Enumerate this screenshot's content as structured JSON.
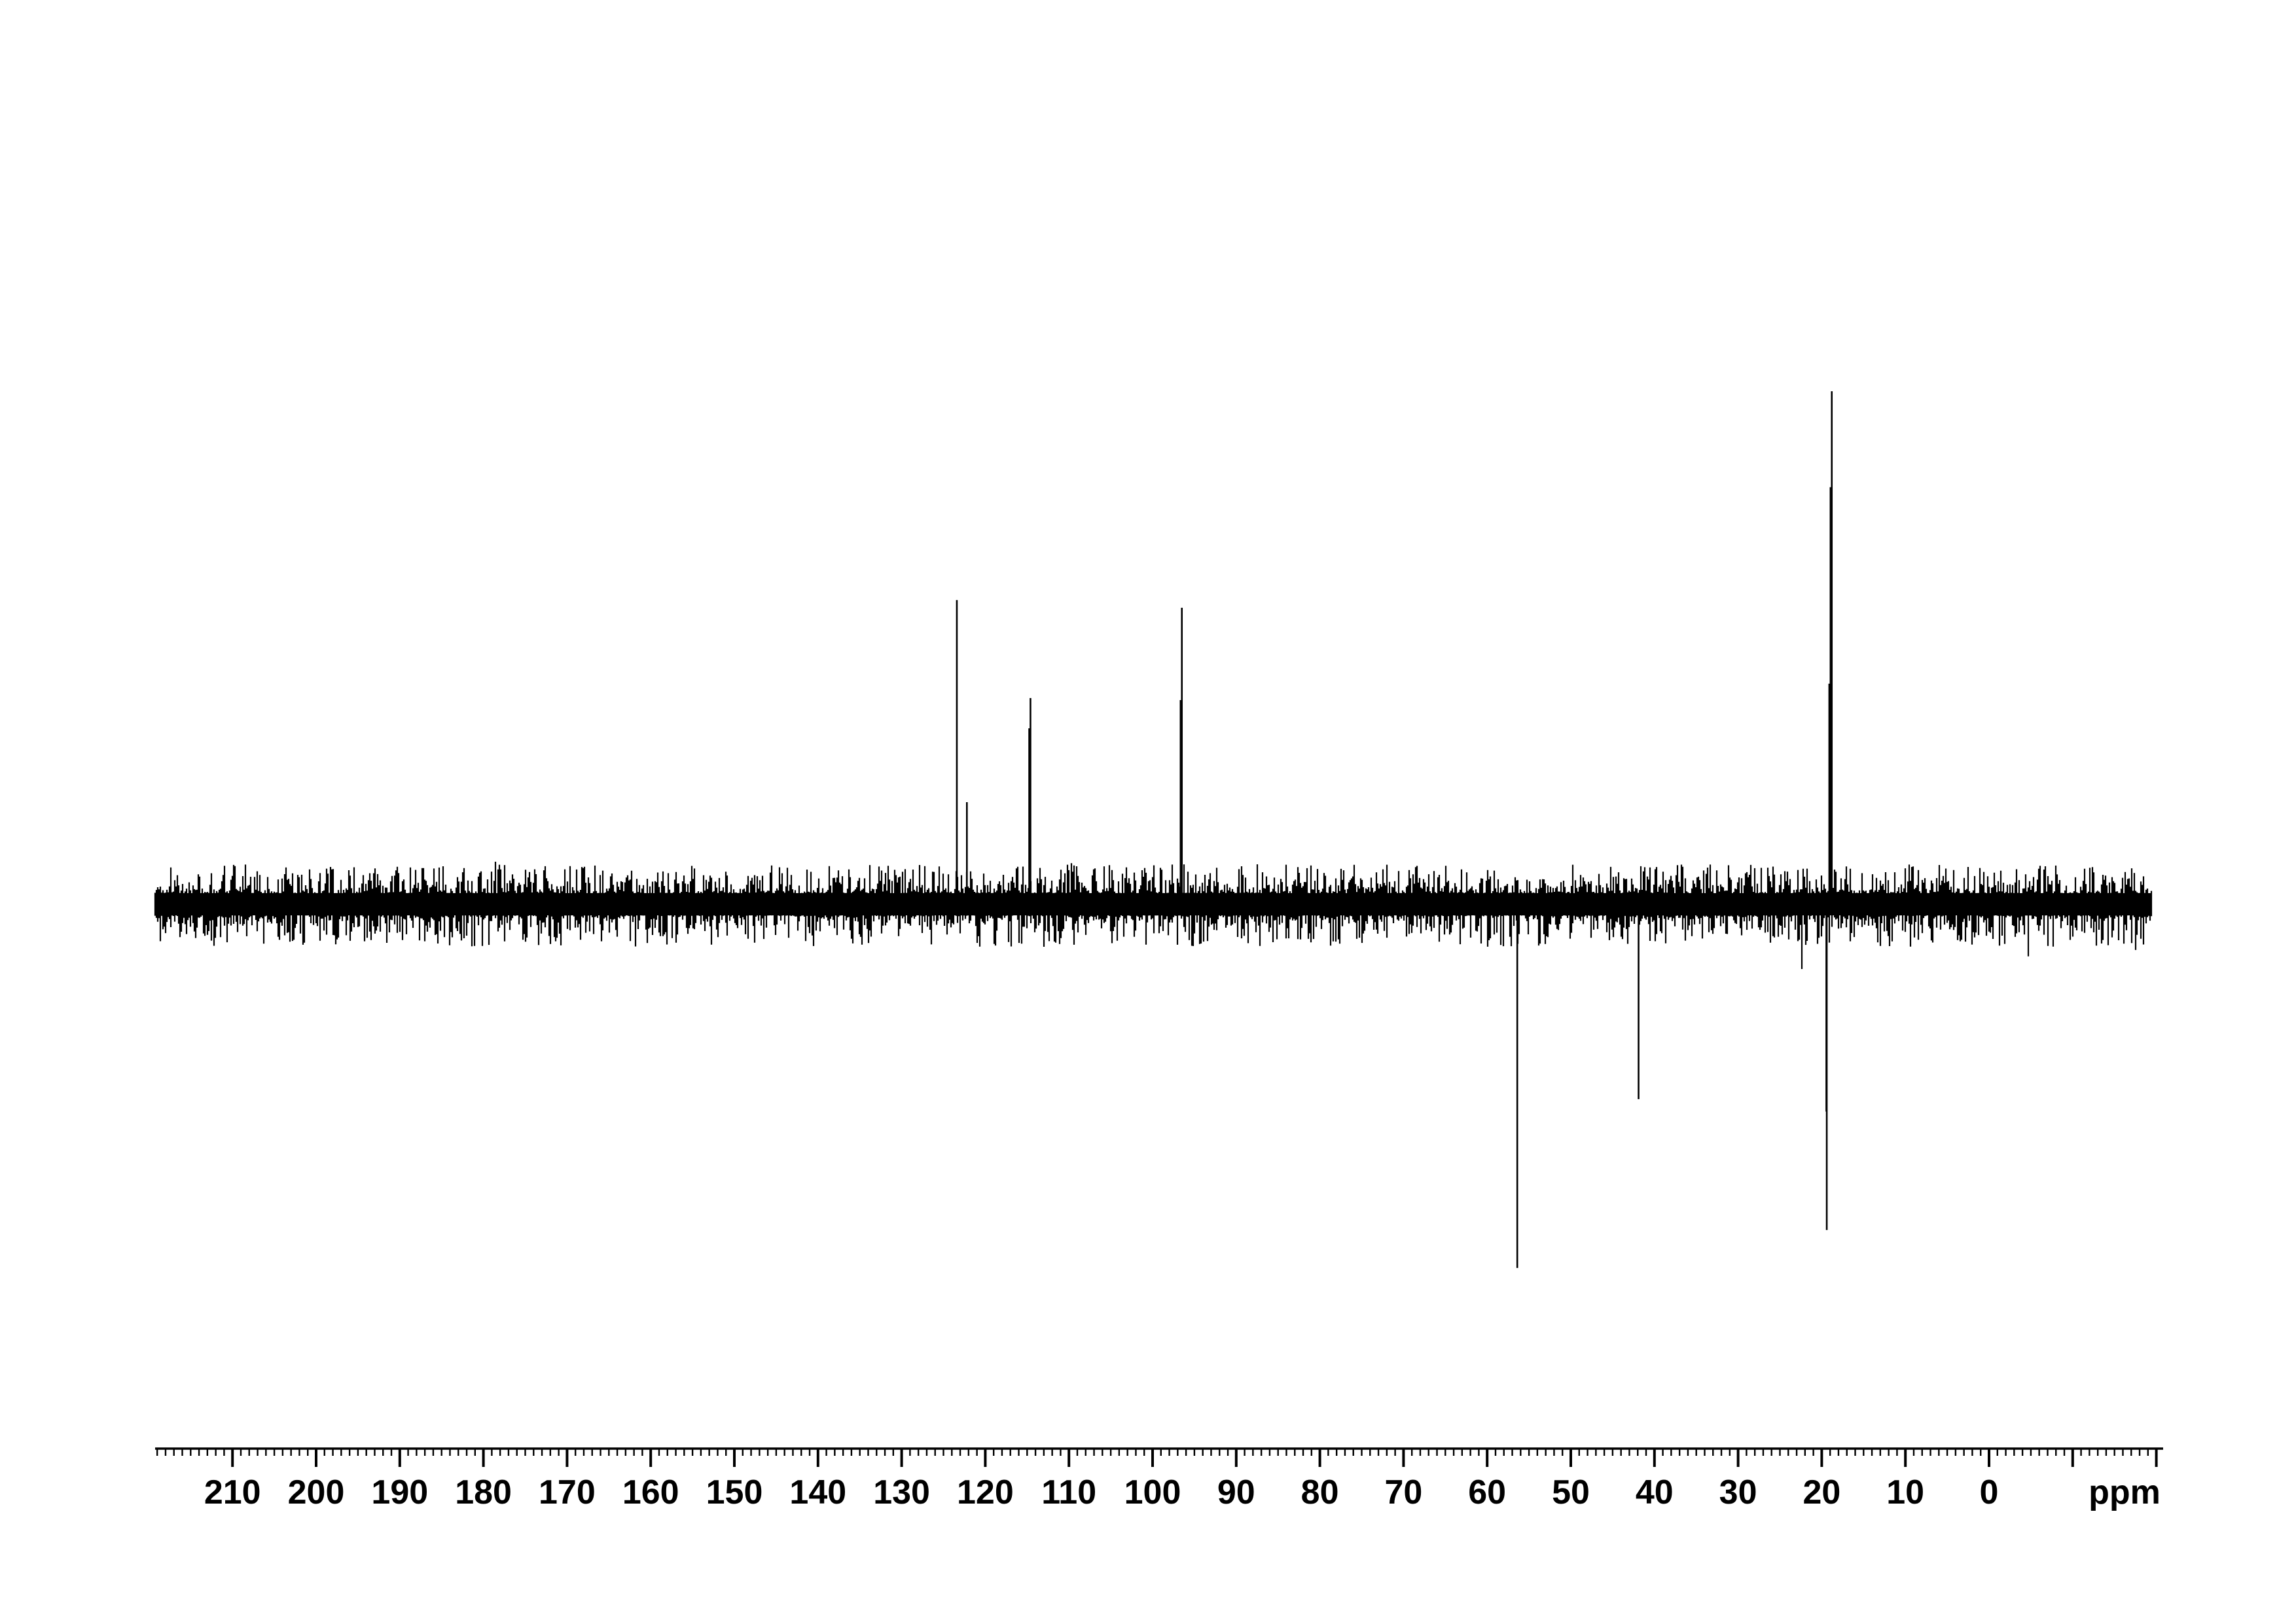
{
  "page": {
    "background_color": "#ffffff",
    "ink_color": "#000000"
  },
  "chart_data": {
    "type": "line",
    "kind": "nmr-spectrum-dept",
    "title": "",
    "xlabel": "ppm",
    "ylabel": "",
    "grid": false,
    "legend": false,
    "x_axis": {
      "unit_label": "ppm",
      "direction": "values-decrease-to-right",
      "range_ppm": [
        219.3,
        -20.8
      ],
      "major_tick_interval_ppm": 10,
      "minor_tick_interval_ppm": 1,
      "labeled_ticks": [
        210,
        200,
        190,
        180,
        170,
        160,
        150,
        140,
        130,
        120,
        110,
        100,
        90,
        80,
        70,
        60,
        50,
        40,
        30,
        20,
        10,
        0
      ],
      "unlabeled_major_ticks": [
        -10,
        -20
      ]
    },
    "y_axis": {
      "visible": false,
      "baseline": "center noise band, positive peaks up, negative peaks down"
    },
    "peaks": [
      {
        "ppm": 123.4,
        "phase": "up",
        "rel_intensity": 0.593
      },
      {
        "ppm": 122.2,
        "phase": "up",
        "rel_intensity": 0.199
      },
      {
        "ppm": 114.6,
        "phase": "up",
        "rel_intensity": 0.402
      },
      {
        "ppm": 114.75,
        "phase": "up",
        "rel_intensity": 0.343
      },
      {
        "ppm": 96.5,
        "phase": "up",
        "rel_intensity": 0.578
      },
      {
        "ppm": 96.65,
        "phase": "up",
        "rel_intensity": 0.398
      },
      {
        "ppm": 19.1,
        "phase": "up",
        "rel_intensity": 0.43
      },
      {
        "ppm": 18.95,
        "phase": "up",
        "rel_intensity": 0.813
      },
      {
        "ppm": 18.8,
        "phase": "up",
        "rel_intensity": 1.0
      },
      {
        "ppm": 56.4,
        "phase": "down",
        "rel_intensity": 0.709
      },
      {
        "ppm": 41.9,
        "phase": "down",
        "rel_intensity": 0.38
      },
      {
        "ppm": 19.45,
        "phase": "down",
        "rel_intensity": 0.404
      },
      {
        "ppm": 19.4,
        "phase": "down",
        "rel_intensity": 0.635
      }
    ],
    "noise_band": {
      "present": true,
      "seed": 1337,
      "span_ppm": [
        219.2,
        -19.5
      ],
      "appearance": "dense black random noise band centered on baseline across full spectrum width"
    }
  }
}
